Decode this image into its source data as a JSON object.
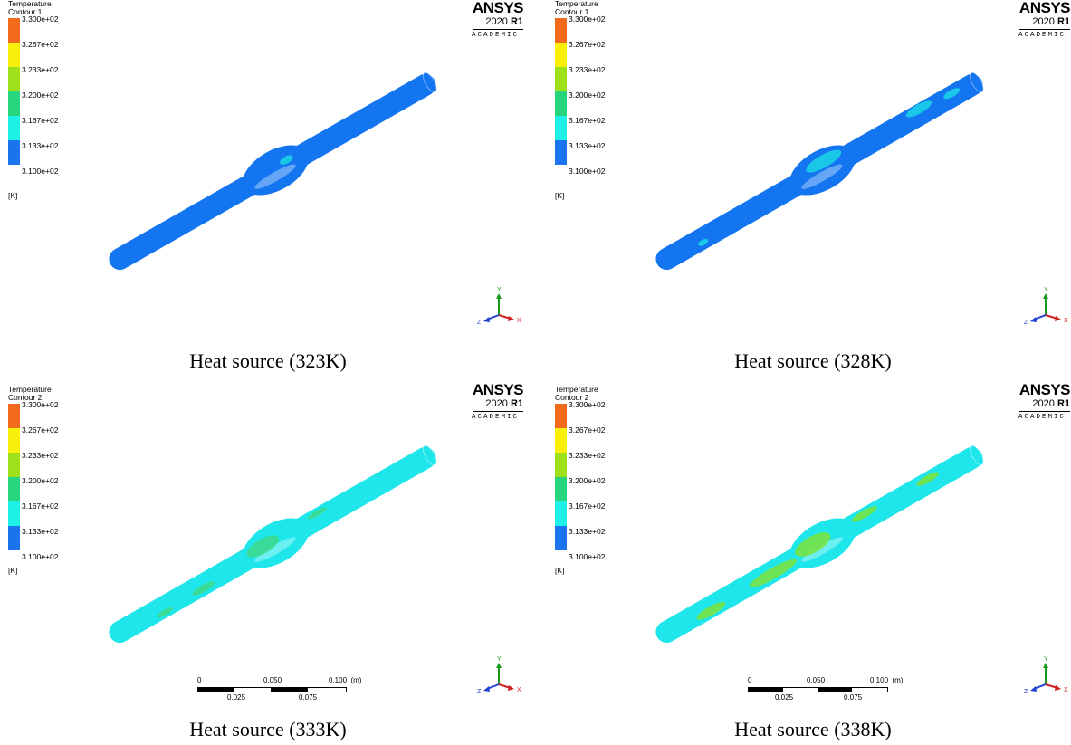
{
  "legend": {
    "ticks": [
      "3.300e+02",
      "3.267e+02",
      "3.233e+02",
      "3.200e+02",
      "3.167e+02",
      "3.133e+02",
      "3.100e+02"
    ],
    "unit": "[K]",
    "colors": [
      "#f26b1d",
      "#f8f00a",
      "#9ee01a",
      "#27d57f",
      "#1ef0e8",
      "#1b74ee"
    ]
  },
  "brand": {
    "name": "ANSYS",
    "year": "2020",
    "release": "R1",
    "edition": "ACADEMIC"
  },
  "panels": [
    {
      "legend_title_1": "Temperature",
      "legend_title_2": "Contour 1",
      "caption": "Heat source (323K)",
      "pipe_color": "#1375f0",
      "accent": "#1bd6e6"
    },
    {
      "legend_title_1": "Temperature",
      "legend_title_2": "Contour 1",
      "caption": "Heat source (328K)",
      "pipe_color": "#1375f0",
      "accent": "#1bd6e6"
    },
    {
      "legend_title_1": "Temperature",
      "legend_title_2": "Contour 2",
      "caption": "Heat source (333K)",
      "pipe_color": "#1ee6ea",
      "accent": "#3dd98a"
    },
    {
      "legend_title_1": "Temperature",
      "legend_title_2": "Contour 2",
      "caption": "Heat source (338K)",
      "pipe_color": "#1ee6ea",
      "accent": "#7de33a"
    }
  ],
  "axes": {
    "y": "Y",
    "x": "X",
    "z": "Z"
  },
  "scale_bar": {
    "top": [
      "0",
      "0.050",
      "0.100  (m)"
    ],
    "bottom": [
      "0.025",
      "0.075"
    ]
  }
}
